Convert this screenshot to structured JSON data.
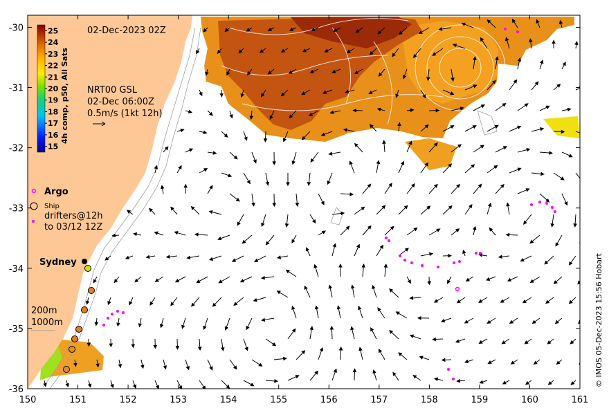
{
  "map": {
    "date_label": "02-Dec-2023 02Z",
    "overlay_lines": [
      "NRT00 GSL",
      "02-Dec 06:00Z",
      "0.5m/s (1kt 12h)"
    ],
    "colorbar": {
      "title": "4h comp, p50, All Sats",
      "min": 15,
      "max": 25,
      "ticks": [
        "25",
        "24",
        "23",
        "22",
        "21",
        "20",
        "19",
        "18",
        "17",
        "16",
        "15"
      ]
    },
    "legend": {
      "argo": "Argo",
      "ship": "Ship",
      "drifters_line1": "drifters@12h",
      "drifters_line2": "to 03/12 12Z"
    },
    "city": "Sydney",
    "depth_labels": [
      "200m",
      "1000m"
    ],
    "credit": "© IMOS 05-Dec-2023 15:56 Hobart",
    "axes": {
      "lon_ticks": [
        "150",
        "151",
        "152",
        "153",
        "154",
        "155",
        "156",
        "157",
        "158",
        "159",
        "160",
        "161"
      ],
      "lat_ticks": [
        "-30",
        "-31",
        "-32",
        "-33",
        "-34",
        "-35",
        "-36"
      ],
      "lon_range": [
        150,
        161
      ],
      "lat_range": [
        -36,
        -29.8
      ]
    },
    "colors": {
      "land": "#fdc896",
      "argo": "#ff00ff",
      "drifters": "#ff00ff"
    }
  }
}
